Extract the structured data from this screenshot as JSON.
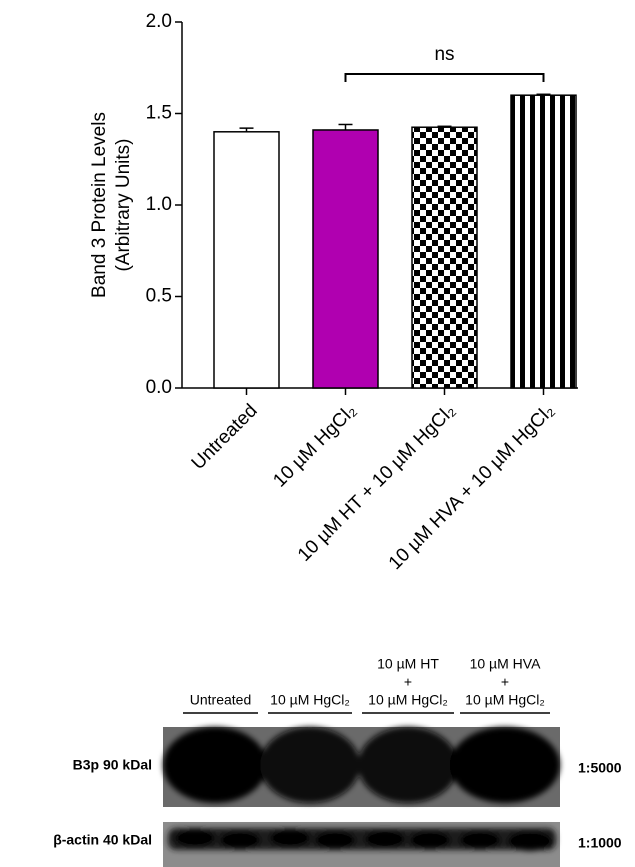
{
  "chart_data": {
    "type": "bar",
    "y_label": [
      "Band 3 Protein Levels",
      "(Arbitrary Units)"
    ],
    "categories": [
      "Untreated",
      "10 µM HgCl₂",
      "10 µM HT + 10 µM HgCl₂",
      "10 µM HVA + 10 µM HgCl₂"
    ],
    "values": [
      1.4,
      1.41,
      1.425,
      1.6
    ],
    "errors": [
      0.02,
      0.03,
      0.005,
      0.005
    ],
    "colors": [
      "#ffffff",
      "#b000b0",
      "checker",
      "stripes"
    ],
    "ylim": [
      0,
      2
    ],
    "yticks": [
      {
        "value": 0,
        "label": "0.0"
      },
      0.5,
      {
        "value": 1,
        "label": "1.0"
      },
      1.5,
      {
        "value": 2,
        "label": "2.0"
      }
    ],
    "annotations": [
      "ns"
    ]
  },
  "blot": {
    "columns": [
      [
        "Untreated"
      ],
      [
        "10 µM HgCl₂"
      ],
      [
        "10 µM HT",
        "+",
        "10 µM HgCl₂"
      ],
      [
        "10 µM HVA",
        "+",
        "10 µM HgCl₂"
      ]
    ],
    "rows": [
      {
        "label": "B3p 90 kDal",
        "dilution": "1:5000"
      },
      {
        "label": "β-actin 40 kDal",
        "dilution": "1:1000"
      }
    ]
  }
}
